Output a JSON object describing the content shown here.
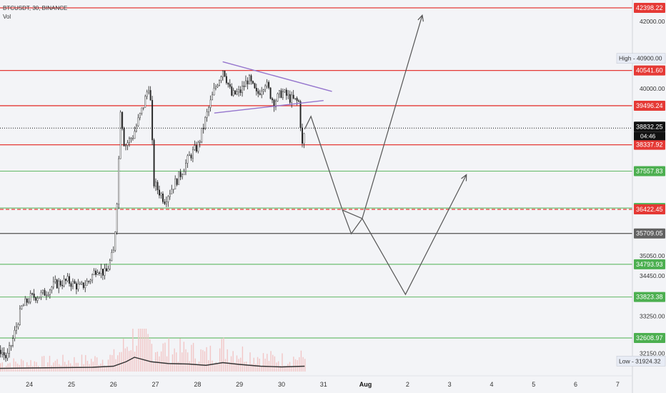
{
  "header": {
    "symbol": "BTCUSDT, 30, BINANCE",
    "volume_label": "Vol"
  },
  "colors": {
    "background": "#f3f4f7",
    "resistance": "#e53935",
    "support": "#4caf50",
    "pivot": "#616161",
    "triangle": "#9575cd",
    "candle": "#222222",
    "volume_bar": "#f2c6c6",
    "volume_ma": "#333333",
    "projection": "#555555",
    "current_price_bg": "#111111"
  },
  "chart_data": {
    "type": "candlestick",
    "title": "BTCUSDT, 30, BINANCE",
    "ylim": [
      31800,
      42600
    ],
    "x_ticks": [
      "24",
      "25",
      "26",
      "27",
      "28",
      "29",
      "30",
      "31",
      "Aug",
      "2",
      "3",
      "4",
      "5",
      "6",
      "7"
    ],
    "price_ticks": [
      {
        "value": 42000,
        "label": "42000.00"
      },
      {
        "value": 40000,
        "label": "40000.00"
      },
      {
        "value": 35050,
        "label": "35050.00"
      },
      {
        "value": 34450,
        "label": "34450.00"
      },
      {
        "value": 33250,
        "label": "33250.00"
      },
      {
        "value": 32150,
        "label": "32150.00"
      }
    ],
    "horizontal_levels": [
      {
        "value": 42398.22,
        "label": "42398.22",
        "kind": "resistance",
        "style": "solid"
      },
      {
        "value": 40541.6,
        "label": "40541.60",
        "kind": "resistance",
        "style": "solid"
      },
      {
        "value": 39496.24,
        "label": "39496.24",
        "kind": "resistance",
        "style": "solid"
      },
      {
        "value": 38337.92,
        "label": "38337.92",
        "kind": "resistance",
        "style": "solid"
      },
      {
        "value": 37557.83,
        "label": "37557.83",
        "kind": "support",
        "style": "solid"
      },
      {
        "value": 36462.91,
        "label": "36462.91",
        "kind": "support",
        "style": "solid"
      },
      {
        "value": 36422.45,
        "label": "36422.45",
        "kind": "resistance",
        "style": "dashed"
      },
      {
        "value": 35709.05,
        "label": "35709.05",
        "kind": "pivot",
        "style": "solid"
      },
      {
        "value": 34793.93,
        "label": "34793.93",
        "kind": "support",
        "style": "solid"
      },
      {
        "value": 33823.38,
        "label": "33823.38",
        "kind": "support",
        "style": "solid"
      },
      {
        "value": 32608.97,
        "label": "32608.97",
        "kind": "support",
        "style": "solid"
      }
    ],
    "current_price": {
      "value": 38832.25,
      "label": "38832.25",
      "countdown": "04:46"
    },
    "high": {
      "value": 40900.0,
      "prefix": "High",
      "label": "40900.00"
    },
    "low": {
      "value": 31924.32,
      "prefix": "Low",
      "label": "31924.32"
    },
    "price_path": [
      {
        "day": 23.3,
        "price": 32250
      },
      {
        "day": 23.45,
        "price": 32000
      },
      {
        "day": 23.6,
        "price": 32600
      },
      {
        "day": 23.8,
        "price": 33500
      },
      {
        "day": 24.0,
        "price": 33800
      },
      {
        "day": 24.3,
        "price": 33900
      },
      {
        "day": 24.6,
        "price": 34200
      },
      {
        "day": 24.9,
        "price": 34300
      },
      {
        "day": 25.2,
        "price": 34100
      },
      {
        "day": 25.4,
        "price": 34300
      },
      {
        "day": 25.6,
        "price": 34700
      },
      {
        "day": 25.8,
        "price": 34500
      },
      {
        "day": 26.0,
        "price": 35200
      },
      {
        "day": 26.1,
        "price": 37300
      },
      {
        "day": 26.15,
        "price": 39500
      },
      {
        "day": 26.25,
        "price": 38300
      },
      {
        "day": 26.45,
        "price": 38600
      },
      {
        "day": 26.7,
        "price": 39500
      },
      {
        "day": 26.85,
        "price": 40200
      },
      {
        "day": 26.95,
        "price": 37200
      },
      {
        "day": 27.2,
        "price": 36700
      },
      {
        "day": 27.45,
        "price": 37200
      },
      {
        "day": 27.6,
        "price": 37500
      },
      {
        "day": 27.8,
        "price": 38000
      },
      {
        "day": 28.0,
        "price": 38300
      },
      {
        "day": 28.2,
        "price": 39200
      },
      {
        "day": 28.4,
        "price": 40000
      },
      {
        "day": 28.6,
        "price": 40600
      },
      {
        "day": 28.8,
        "price": 39800
      },
      {
        "day": 29.0,
        "price": 39900
      },
      {
        "day": 29.2,
        "price": 40300
      },
      {
        "day": 29.4,
        "price": 39800
      },
      {
        "day": 29.6,
        "price": 40200
      },
      {
        "day": 29.8,
        "price": 39600
      },
      {
        "day": 30.0,
        "price": 39900
      },
      {
        "day": 30.2,
        "price": 39700
      },
      {
        "day": 30.4,
        "price": 39600
      },
      {
        "day": 30.48,
        "price": 38300
      },
      {
        "day": 30.55,
        "price": 38800
      }
    ],
    "triangle": {
      "upper": [
        {
          "day": 28.6,
          "price": 40800
        },
        {
          "day": 31.2,
          "price": 39920
        }
      ],
      "lower": [
        {
          "day": 28.4,
          "price": 39280
        },
        {
          "day": 31.0,
          "price": 39650
        }
      ]
    },
    "projections": [
      {
        "name": "bullish_path",
        "points": [
          {
            "day": 30.55,
            "price": 38800
          },
          {
            "day": 30.7,
            "price": 39180
          },
          {
            "day": 31.45,
            "price": 36400
          },
          {
            "day": 31.66,
            "price": 35700
          },
          {
            "day": 31.92,
            "price": 36150
          },
          {
            "day": 33.35,
            "price": 42180
          }
        ]
      },
      {
        "name": "bearish_path",
        "points": [
          {
            "day": 31.45,
            "price": 36400
          },
          {
            "day": 31.92,
            "price": 36150
          },
          {
            "day": 32.95,
            "price": 33900
          },
          {
            "day": 34.4,
            "price": 37450
          }
        ]
      }
    ],
    "volume_ma": [
      {
        "day": 23.3,
        "v": 0.18
      },
      {
        "day": 24.0,
        "v": 0.2
      },
      {
        "day": 24.8,
        "v": 0.22
      },
      {
        "day": 25.5,
        "v": 0.24
      },
      {
        "day": 26.0,
        "v": 0.3
      },
      {
        "day": 26.3,
        "v": 0.55
      },
      {
        "day": 26.5,
        "v": 0.8
      },
      {
        "day": 26.9,
        "v": 0.55
      },
      {
        "day": 27.3,
        "v": 0.45
      },
      {
        "day": 27.8,
        "v": 0.42
      },
      {
        "day": 28.2,
        "v": 0.35
      },
      {
        "day": 28.6,
        "v": 0.5
      },
      {
        "day": 29.0,
        "v": 0.4
      },
      {
        "day": 29.5,
        "v": 0.3
      },
      {
        "day": 30.0,
        "v": 0.26
      },
      {
        "day": 30.55,
        "v": 0.3
      }
    ],
    "grid": false
  }
}
